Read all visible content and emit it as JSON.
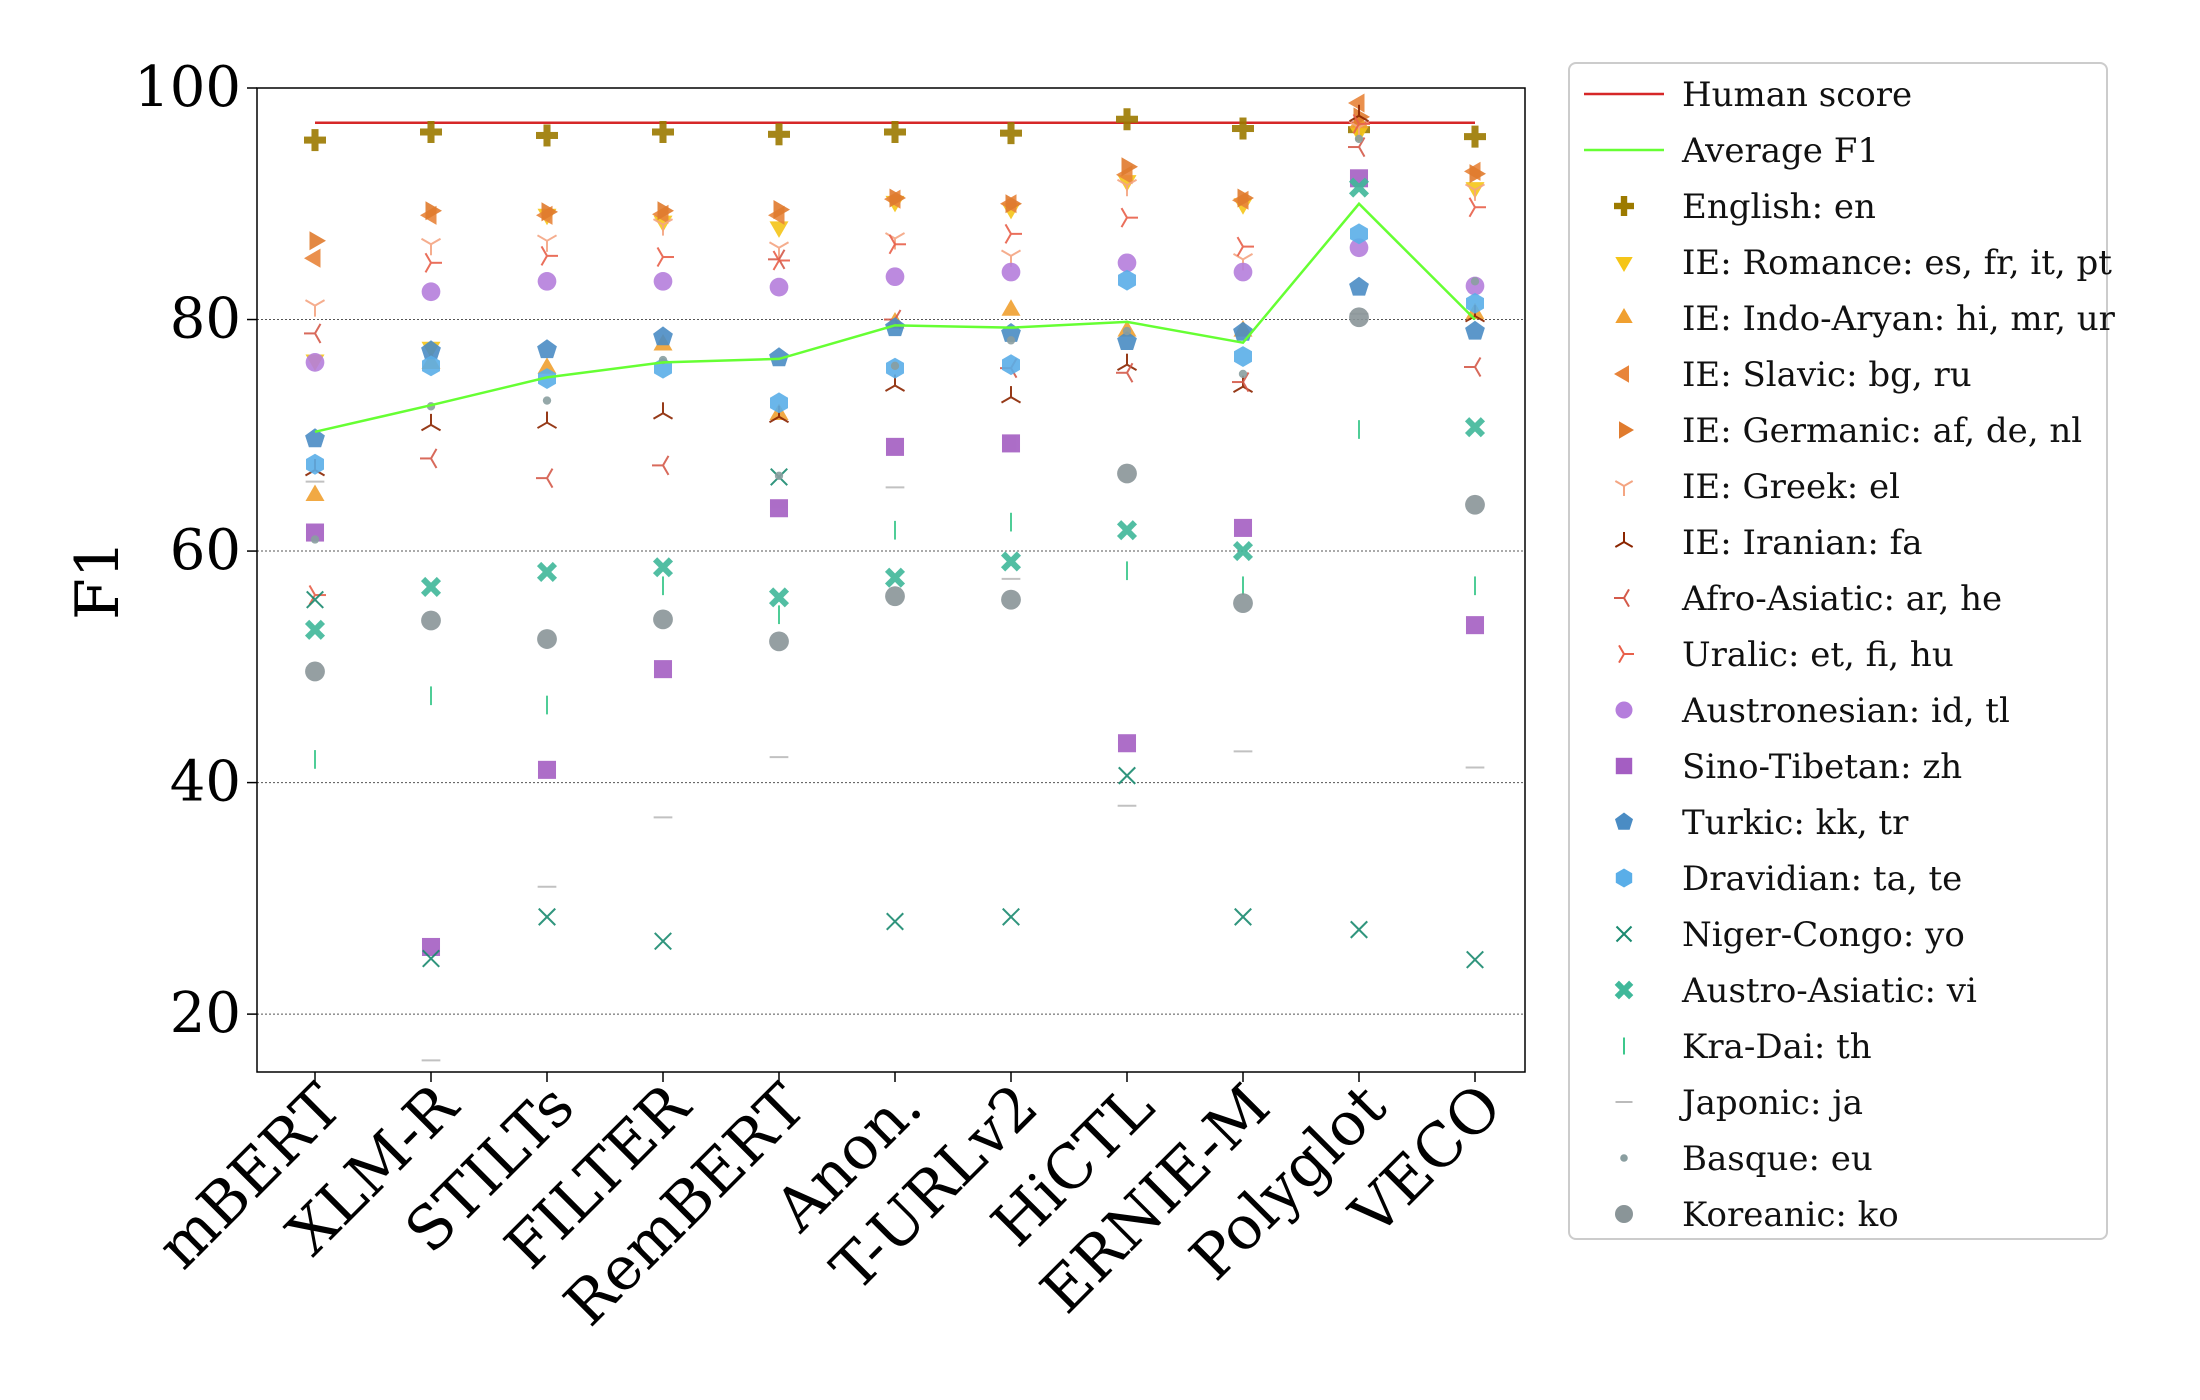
{
  "chart_data": {
    "type": "scatter",
    "title": "",
    "xlabel": "",
    "ylabel": "F1",
    "ylim": [
      15,
      100
    ],
    "yticks": [
      20,
      40,
      60,
      80,
      100
    ],
    "gridlines": [
      20,
      40,
      60,
      80
    ],
    "legend_position": "outside-right",
    "categories": [
      "mBERT",
      "XLM-R",
      "STILTs",
      "FILTER",
      "RemBERT",
      "Anon.",
      "T-URLv2",
      "HiCTL",
      "ERNIE-M",
      "Polyglot",
      "VECO"
    ],
    "human_score": 97,
    "average_f1": [
      70.3,
      72.6,
      75.0,
      76.3,
      76.6,
      79.5,
      79.3,
      79.8,
      78.0,
      90.0,
      80.0
    ],
    "series": [
      {
        "name": "Human score",
        "marker": "line",
        "color": "#d62728"
      },
      {
        "name": "Average F1",
        "marker": "line",
        "color": "#66ff33"
      },
      {
        "name": "English: en",
        "marker": "plus",
        "color": "#9c7a00",
        "values": [
          95.5,
          96.2,
          95.9,
          96.2,
          96.0,
          96.2,
          96.1,
          97.3,
          96.5,
          96.4,
          95.8
        ]
      },
      {
        "name": "IE: Romance: es, fr, it, pt",
        "marker": "tri_down",
        "color": "#f5c518",
        "values": [
          76.5,
          77.6,
          89.1,
          88.5,
          88.0,
          90.2,
          89.6,
          92.0,
          90.0,
          96.2,
          91.4
        ]
      },
      {
        "name": "IE: Indo-Aryan: hi, mr, ur",
        "marker": "tri_up",
        "color": "#f0a030",
        "values": [
          64.8,
          76.2,
          75.8,
          77.8,
          71.8,
          79.7,
          80.8,
          79.0,
          79.0,
          97.0,
          80.5
        ]
      },
      {
        "name": "IE: Slavic: bg, ru",
        "marker": "tri_left",
        "color": "#e8843a",
        "values": [
          85.3,
          89.0,
          89.0,
          89.1,
          89.0,
          90.4,
          90.0,
          92.5,
          90.3,
          98.7,
          92.8
        ]
      },
      {
        "name": "IE: Germanic: af, de, nl",
        "marker": "tri_right",
        "color": "#e07b2e",
        "values": [
          86.8,
          89.4,
          89.3,
          89.4,
          89.5,
          90.5,
          90.0,
          93.2,
          90.5,
          97.5,
          92.6
        ]
      },
      {
        "name": "IE: Greek: el",
        "marker": "y1",
        "color": "#f4a582",
        "values": [
          81.2,
          86.5,
          86.8,
          88.2,
          86.2,
          87.0,
          85.5,
          91.6,
          85.2,
          96.6,
          91.2
        ]
      },
      {
        "name": "IE: Iranian: fa",
        "marker": "y2",
        "color": "#8b2500",
        "values": [
          67.0,
          70.9,
          71.1,
          71.9,
          71.6,
          74.3,
          73.3,
          76.1,
          74.2,
          97.6,
          80.3
        ]
      },
      {
        "name": "Afro-Asiatic: ar, he",
        "marker": "y3",
        "color": "#d45a4a",
        "values": [
          78.8,
          68.0,
          66.3,
          67.4,
          85.2,
          80.0,
          75.8,
          75.4,
          74.6,
          94.9,
          75.9
        ]
      },
      {
        "name": "Uralic: et, fi, hu",
        "marker": "y4",
        "color": "#e8604a",
        "values": [
          56.2,
          84.9,
          85.5,
          85.4,
          85.1,
          86.5,
          87.4,
          88.8,
          86.3,
          96.9,
          89.7
        ]
      },
      {
        "name": "Austronesian: id, tl",
        "marker": "circle",
        "color": "#b57edc",
        "values": [
          76.3,
          82.4,
          83.3,
          83.3,
          82.8,
          83.7,
          84.1,
          84.9,
          84.1,
          86.2,
          82.9
        ]
      },
      {
        "name": "Sino-Tibetan: zh",
        "marker": "square",
        "color": "#a45ec2",
        "values": [
          61.6,
          25.8,
          41.1,
          49.8,
          63.7,
          69.0,
          69.3,
          43.4,
          62.0,
          92.2,
          53.6
        ]
      },
      {
        "name": "Turkic: kk, tr",
        "marker": "pentagon",
        "color": "#4a8cc4",
        "values": [
          69.7,
          77.3,
          77.4,
          78.5,
          76.7,
          79.3,
          78.8,
          78.1,
          78.9,
          82.8,
          79.0
        ]
      },
      {
        "name": "Dravidian: ta, te",
        "marker": "hexagon",
        "color": "#5aaee8",
        "values": [
          67.5,
          76.0,
          74.9,
          75.8,
          72.8,
          75.8,
          76.1,
          83.4,
          76.8,
          87.4,
          81.4
        ]
      },
      {
        "name": "Niger-Congo: yo",
        "marker": "x",
        "color": "#1a8a70",
        "values": [
          55.8,
          24.8,
          28.4,
          26.3,
          66.4,
          28.0,
          28.4,
          40.6,
          28.4,
          27.3,
          24.7
        ]
      },
      {
        "name": "Austro-Asiatic: vi",
        "marker": "X",
        "color": "#40b89a",
        "values": [
          53.2,
          56.9,
          58.2,
          58.6,
          56.0,
          57.7,
          59.1,
          61.8,
          60.0,
          91.4,
          70.7
        ]
      },
      {
        "name": "Kra-Dai: th",
        "marker": "vline",
        "color": "#3cc88c",
        "values": [
          42.0,
          47.5,
          46.7,
          57.0,
          54.5,
          61.8,
          62.5,
          58.3,
          57.0,
          70.5,
          57.0
        ]
      },
      {
        "name": "Japonic: ja",
        "marker": "hline",
        "color": "#bbbbbb",
        "values": [
          66.0,
          16.0,
          31.0,
          37.0,
          42.2,
          65.5,
          57.6,
          38.0,
          42.7,
          80.5,
          41.3
        ]
      },
      {
        "name": "Basque: eu",
        "marker": "point",
        "color": "#8a9ea0",
        "values": [
          61.0,
          72.5,
          73.0,
          76.5,
          66.5,
          76.0,
          78.2,
          79.0,
          75.3,
          95.6,
          83.3
        ]
      },
      {
        "name": "Koreanic: ko",
        "marker": "circle_lg",
        "color": "#8a9598",
        "values": [
          49.6,
          54.0,
          52.4,
          54.1,
          52.2,
          56.1,
          55.8,
          66.7,
          55.5,
          80.2,
          64.0
        ]
      }
    ]
  }
}
